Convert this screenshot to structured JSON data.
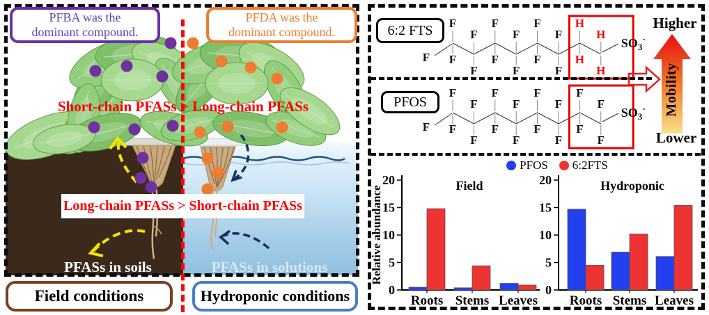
{
  "left_panel": {
    "pfba_box": {
      "line1": "PFBA was the",
      "line2": "dominant compound."
    },
    "pfda_box": {
      "line1": "PFDA was the",
      "line2": "dominant compound."
    },
    "short_chain_text": "Short-chain PFASs > Long-chain PFASs",
    "long_chain_text": "Long-chain PFASs > Short-chain PFASs",
    "soil_label": "PFASs in soils",
    "solution_label": "PFASs in solutions",
    "field_condition_label": "Field conditions",
    "hydroponic_condition_label": "Hydroponic conditions",
    "pfas_dots": {
      "purple": [
        [
          245,
          62
        ],
        [
          137,
          102
        ],
        [
          182,
          95
        ],
        [
          233,
          110
        ],
        [
          135,
          183
        ],
        [
          193,
          186
        ],
        [
          248,
          181
        ],
        [
          205,
          227
        ],
        [
          202,
          256
        ],
        [
          217,
          269
        ]
      ],
      "orange": [
        [
          277,
          62
        ],
        [
          318,
          88
        ],
        [
          360,
          97
        ],
        [
          398,
          113
        ],
        [
          287,
          190
        ],
        [
          327,
          182
        ],
        [
          405,
          183
        ],
        [
          298,
          228
        ],
        [
          313,
          248
        ],
        [
          298,
          272
        ]
      ]
    },
    "colors": {
      "dot_purple": "#7030a0",
      "dot_orange": "#ed7d31",
      "red_text": "#fd0000",
      "field_border": "#7a4023",
      "hydroponic_border": "#4a7cc7",
      "arrow_yellow": "#f6e400",
      "arrow_navy": "#16305e"
    }
  },
  "right_panel": {
    "structures": [
      {
        "name": "6:2 FTS",
        "terminal_atom": "F",
        "end_group": {
          "text": "SO3-",
          "main": "SO",
          "sub": "3",
          "sup": "-"
        },
        "carbons": [
          {
            "top": "F",
            "bottom": "F",
            "red": false
          },
          {
            "top": "F",
            "bottom": "F",
            "red": false
          },
          {
            "top": "F",
            "bottom": "F",
            "red": false
          },
          {
            "top": "F",
            "bottom": "F",
            "red": false
          },
          {
            "top": "F",
            "bottom": "F",
            "red": false
          },
          {
            "top": "F",
            "bottom": "F",
            "red": false
          },
          {
            "top": "H",
            "bottom": "H",
            "red": true
          },
          {
            "top": "H",
            "bottom": "H",
            "red": true
          }
        ],
        "highlight_last_carbons": 2
      },
      {
        "name": "PFOS",
        "terminal_atom": "F",
        "end_group": {
          "text": "SO3-",
          "main": "SO",
          "sub": "3",
          "sup": "-"
        },
        "carbons": [
          {
            "top": "F",
            "bottom": "F",
            "red": false
          },
          {
            "top": "F",
            "bottom": "F",
            "red": false
          },
          {
            "top": "F",
            "bottom": "F",
            "red": false
          },
          {
            "top": "F",
            "bottom": "F",
            "red": false
          },
          {
            "top": "F",
            "bottom": "F",
            "red": false
          },
          {
            "top": "F",
            "bottom": "F",
            "red": false
          },
          {
            "top": "F",
            "bottom": "F",
            "red": false
          },
          {
            "top": "F",
            "bottom": "F",
            "red": false
          }
        ],
        "highlight_last_carbons": 2
      }
    ],
    "mobility": {
      "top_label": "Higher",
      "bottom_label": "Lower",
      "arrow_label": "Mobility"
    },
    "legend": [
      {
        "label": "PFOS",
        "color": "#2240ee"
      },
      {
        "label": "6:2FTS",
        "color": "#ee3333"
      }
    ]
  },
  "chart_data": [
    {
      "type": "bar",
      "title": "Field",
      "categories": [
        "Roots",
        "Stems",
        "Leaves"
      ],
      "series": [
        {
          "name": "PFOS",
          "values": [
            0.5,
            0.4,
            1.2
          ]
        },
        {
          "name": "6:2FTS",
          "values": [
            14.8,
            4.4,
            0.9
          ]
        }
      ],
      "xlabel": "",
      "ylabel": "Relative abundance",
      "ylim": [
        0,
        20
      ],
      "yticks": [
        0,
        5,
        10,
        15,
        20
      ],
      "legend_position": "top-center-shared",
      "grid": false
    },
    {
      "type": "bar",
      "title": "Hydroponic",
      "categories": [
        "Roots",
        "Stems",
        "Leaves"
      ],
      "series": [
        {
          "name": "PFOS",
          "values": [
            14.7,
            6.9,
            6.1
          ]
        },
        {
          "name": "6:2FTS",
          "values": [
            4.5,
            10.2,
            15.4
          ]
        }
      ],
      "xlabel": "",
      "ylabel": "",
      "ylim": [
        0,
        20
      ],
      "yticks": [
        0,
        5,
        10,
        15,
        20
      ],
      "legend_position": "top-center-shared",
      "grid": false
    }
  ]
}
